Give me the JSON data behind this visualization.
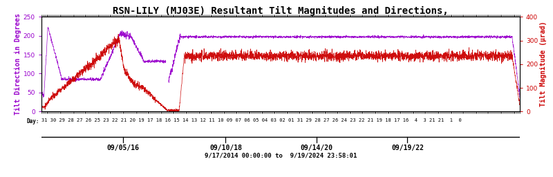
{
  "title": "RSN-LILY (MJ03E) Resultant Tilt Magnitudes and Directions,",
  "ylabel_left": "Tilt Direction in Degrees",
  "ylabel_right": "Tilt Magnitude (μrad)",
  "date_range": "9/17/2014 00:00:00 to  9/19/2024 23:58:01",
  "x_tick_labels": [
    "09/05/16",
    "09/10/18",
    "09/14/20",
    "09/19/22"
  ],
  "x_tick_pos": [
    0.17,
    0.385,
    0.575,
    0.765
  ],
  "ylim_left": [
    0,
    250
  ],
  "ylim_right": [
    0,
    400
  ],
  "yticks_left": [
    0,
    50,
    100,
    150,
    200,
    250
  ],
  "yticks_right": [
    0,
    100,
    200,
    300,
    400
  ],
  "bg_color": "#ffffff",
  "purple_color": "#9900cc",
  "red_color": "#cc0000",
  "black_color": "#000000",
  "title_fontsize": 10,
  "axis_label_fontsize": 7,
  "tick_fontsize": 6.5,
  "day_fontsize": 5.5
}
